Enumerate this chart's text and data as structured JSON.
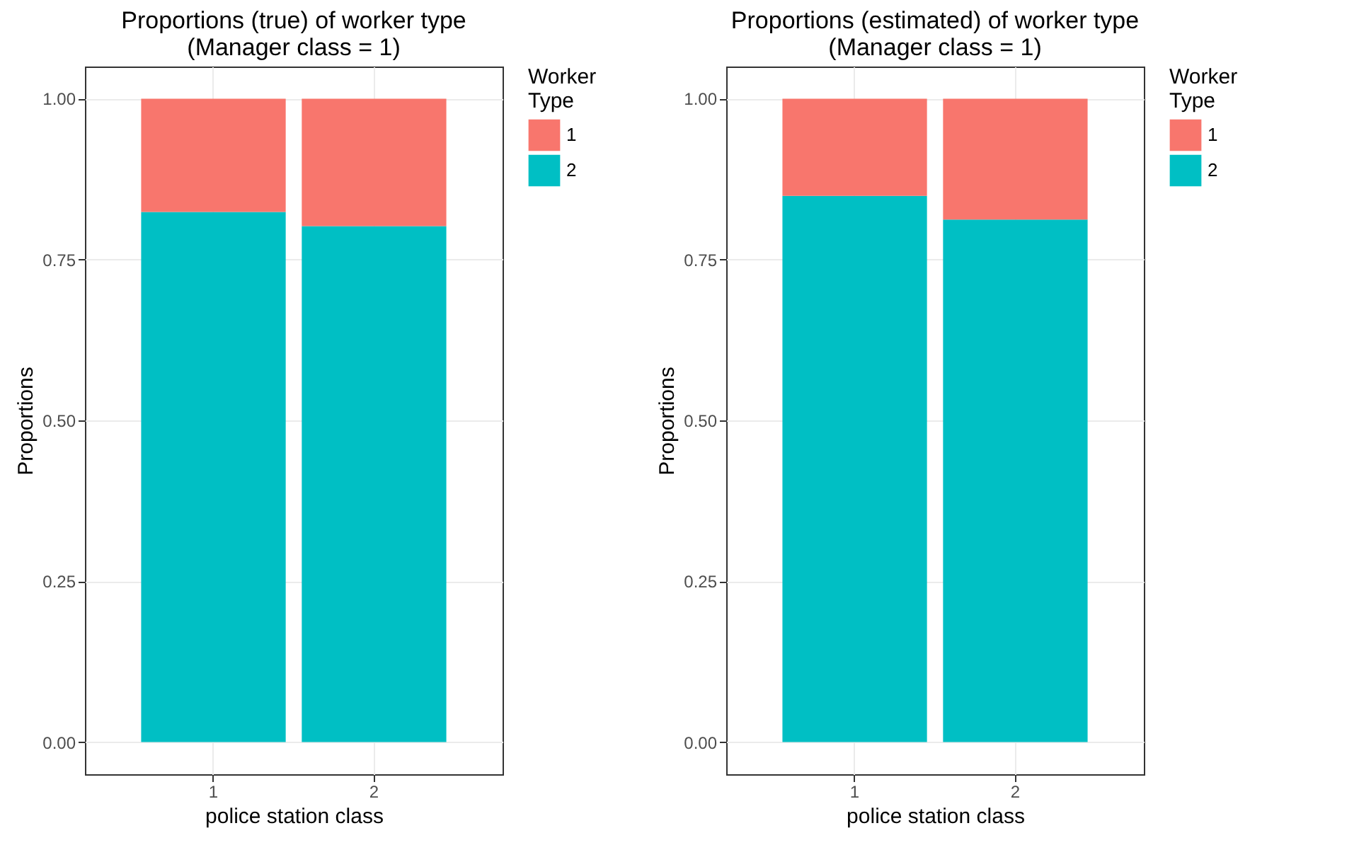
{
  "chart_data": [
    {
      "type": "bar",
      "title": "Proportions (true) of worker type",
      "subtitle": "(Manager class = 1)",
      "xlabel": "police station class",
      "ylabel": "Proportions",
      "legend_title": "Worker Type",
      "categories": [
        "1",
        "2"
      ],
      "stacked": true,
      "series": [
        {
          "name": "2",
          "color": "#00bfc4",
          "values": [
            0.824,
            0.802
          ]
        },
        {
          "name": "1",
          "color": "#f8766d",
          "values": [
            0.176,
            0.198
          ]
        }
      ],
      "ylim": [
        -0.05,
        1.05
      ],
      "yticks": [
        {
          "value": 0,
          "label": "0.00"
        },
        {
          "value": 0.25,
          "label": "0.25"
        },
        {
          "value": 0.5,
          "label": "0.50"
        },
        {
          "value": 0.75,
          "label": "0.75"
        },
        {
          "value": 1,
          "label": "1.00"
        }
      ],
      "grid": true,
      "legend": "right"
    },
    {
      "type": "bar",
      "title": "Proportions (estimated) of worker type",
      "subtitle": "(Manager class = 1)",
      "xlabel": "police station class",
      "ylabel": "Proportions",
      "legend_title": "Worker Type",
      "categories": [
        "1",
        "2"
      ],
      "stacked": true,
      "series": [
        {
          "name": "2",
          "color": "#00bfc4",
          "values": [
            0.849,
            0.812
          ]
        },
        {
          "name": "1",
          "color": "#f8766d",
          "values": [
            0.151,
            0.188
          ]
        }
      ],
      "ylim": [
        -0.05,
        1.05
      ],
      "yticks": [
        {
          "value": 0,
          "label": "0.00"
        },
        {
          "value": 0.25,
          "label": "0.25"
        },
        {
          "value": 0.5,
          "label": "0.50"
        },
        {
          "value": 0.75,
          "label": "0.75"
        },
        {
          "value": 1,
          "label": "1.00"
        }
      ],
      "grid": true,
      "legend": "right"
    }
  ]
}
